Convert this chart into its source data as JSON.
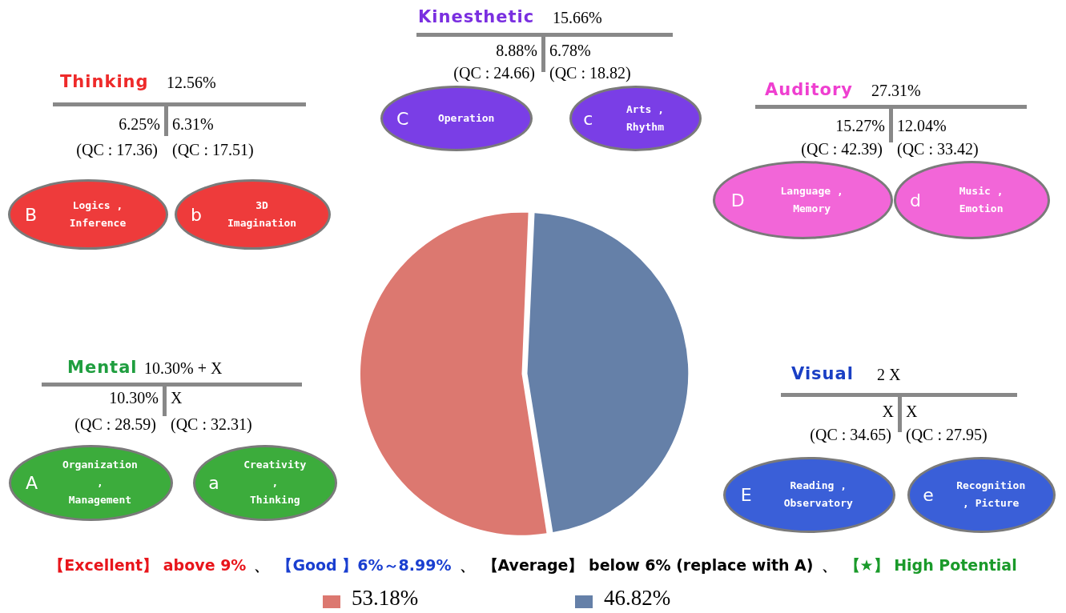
{
  "chart_data": {
    "type": "pie",
    "categories": [
      "53.18%",
      "46.82%"
    ],
    "values": [
      53.18,
      46.82
    ],
    "colors": [
      "#dc7870",
      "#6580a8"
    ],
    "legend": "bottom",
    "annotations": [
      "Thinking",
      "12.56%",
      "6.25%",
      "6.31%",
      "(QC : 17.36)",
      "(QC : 17.51)",
      "B",
      "Logics ,\nInference",
      "b",
      "3D\nImagination",
      "Kinesthetic",
      "15.66%",
      "8.88%",
      "6.78%",
      "(QC : 24.66)",
      "(QC : 18.82)",
      "C",
      "Operation",
      "c",
      "Arts ,\nRhythm",
      "Auditory",
      "27.31%",
      "15.27%",
      "12.04%",
      "(QC : 42.39)",
      "(QC : 33.42)",
      "D",
      "Language ,\nMemory",
      "d",
      "Music ,\nEmotion",
      "Mental",
      "10.30% + X",
      "10.30%",
      "X",
      "(QC : 28.59)",
      "(QC : 32.31)",
      "A",
      "Organization\n,\nManagement",
      "a",
      "Creativity\n,\nThinking",
      "Visual",
      "2 X",
      "X",
      "X",
      "(QC : 34.65)",
      "(QC : 27.95)",
      "E",
      "Reading ,\nObservatory",
      "e",
      "Recognition\n, Picture",
      "【Excellent】 above 9%",
      "、",
      "【Good 】6%～8.99%",
      "、",
      "【Average】 below 6% (replace with A)",
      "、",
      "【★】 High Potential"
    ]
  }
}
